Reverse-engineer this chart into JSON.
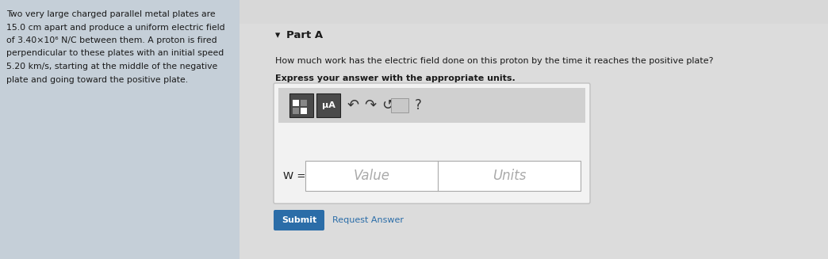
{
  "left_text_lines": [
    "Two very large charged parallel metal plates are",
    "15.0 cm apart and produce a uniform electric field",
    "of 3.40×10⁶ N/C between them. A proton is fired",
    "perpendicular to these plates with an initial speed",
    "5.20 km/s, starting at the middle of the negative",
    "plate and going toward the positive plate."
  ],
  "part_label": "Part A",
  "question": "How much work has the electric field done on this proton by the time it reaches the positive plate?",
  "express": "Express your answer with the appropriate units.",
  "w_label": "W =",
  "value_placeholder": "Value",
  "units_placeholder": "Units",
  "submit_text": "Submit",
  "request_text": "Request Answer",
  "submit_bg": "#2b6da8",
  "submit_color": "#ffffff",
  "left_panel_color": "#c5cfd8",
  "right_panel_color": "#dcdcdc",
  "toolbar_bg": "#d0d0d0",
  "input_outer_bg": "#f2f2f2",
  "input_outer_border": "#c0c0c0",
  "white": "#ffffff",
  "dark_btn": "#555555",
  "btn_border": "#333333",
  "text_dark": "#1a1a1a",
  "text_gray": "#aaaaaa",
  "text_link": "#2b6da8"
}
